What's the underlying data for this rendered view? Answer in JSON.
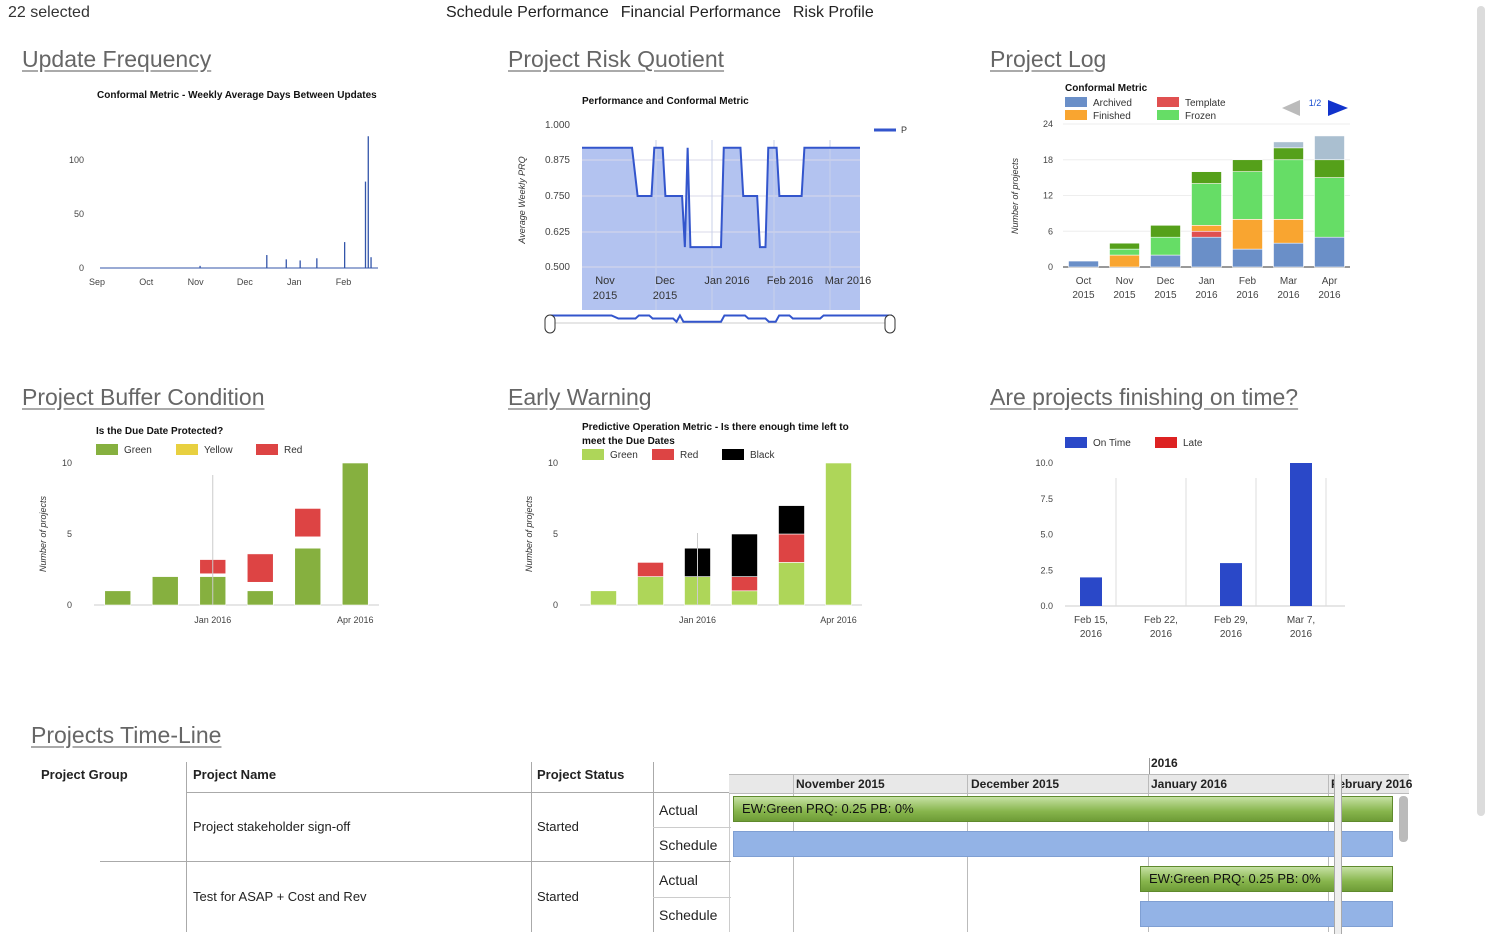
{
  "header": {
    "selected": "22 selected",
    "nav": [
      "Schedule Performance",
      "Financial Performance",
      "Risk Profile"
    ]
  },
  "panels": {
    "update_frequency": {
      "title": "Update Frequency"
    },
    "risk_quotient": {
      "title": "Project Risk Quotient"
    },
    "project_log": {
      "title": "Project Log"
    },
    "buffer_condition": {
      "title": "Project Buffer Condition"
    },
    "early_warning": {
      "title": "Early Warning"
    },
    "on_time": {
      "title": "Are projects finishing on time?"
    },
    "timeline": {
      "title": "Projects Time-Line"
    }
  },
  "chart_data": [
    {
      "id": "update_frequency",
      "type": "line",
      "title": "Conformal Metric - Weekly Average Days Between Updates",
      "xlabel": "",
      "ylabel": "",
      "x_ticks": [
        "Sep",
        "Oct",
        "Nov",
        "Dec",
        "Jan",
        "Feb"
      ],
      "y_ticks": [
        "100",
        "50",
        "0"
      ],
      "ylim": [
        0,
        125
      ],
      "spikes": [
        {
          "x": 0.36,
          "y": 2
        },
        {
          "x": 0.6,
          "y": 12
        },
        {
          "x": 0.67,
          "y": 8
        },
        {
          "x": 0.72,
          "y": 7
        },
        {
          "x": 0.78,
          "y": 9
        },
        {
          "x": 0.88,
          "y": 24
        },
        {
          "x": 0.955,
          "y": 80
        },
        {
          "x": 0.965,
          "y": 122
        },
        {
          "x": 0.975,
          "y": 10
        }
      ],
      "color": "#3355aa"
    },
    {
      "id": "risk_quotient",
      "type": "area",
      "title": "Performance and Conformal Metric",
      "ylabel": "Average Weekly PRQ",
      "y_ticks": [
        "1.000",
        "0.875",
        "0.750",
        "0.625",
        "0.500"
      ],
      "x_ticks": [
        [
          "Nov",
          "2015"
        ],
        [
          "Dec",
          "2015"
        ],
        [
          "Jan 2016"
        ],
        [
          "Feb 2016"
        ],
        [
          "Mar 2016"
        ]
      ],
      "ylim": [
        0.5,
        1.0
      ],
      "legend": "P",
      "points": [
        [
          0.0,
          0.92
        ],
        [
          0.18,
          0.92
        ],
        [
          0.2,
          0.75
        ],
        [
          0.25,
          0.75
        ],
        [
          0.26,
          0.92
        ],
        [
          0.29,
          0.92
        ],
        [
          0.3,
          0.75
        ],
        [
          0.36,
          0.75
        ],
        [
          0.37,
          0.57
        ],
        [
          0.38,
          0.92
        ],
        [
          0.39,
          0.57
        ],
        [
          0.5,
          0.57
        ],
        [
          0.51,
          0.92
        ],
        [
          0.57,
          0.92
        ],
        [
          0.58,
          0.75
        ],
        [
          0.63,
          0.75
        ],
        [
          0.64,
          0.57
        ],
        [
          0.66,
          0.57
        ],
        [
          0.67,
          0.92
        ],
        [
          0.7,
          0.92
        ],
        [
          0.71,
          0.75
        ],
        [
          0.79,
          0.75
        ],
        [
          0.8,
          0.92
        ],
        [
          1.0,
          0.92
        ]
      ],
      "color": "#3355cc",
      "fill": "#b3c3f0"
    },
    {
      "id": "project_log",
      "type": "bar",
      "title": "Conformal Metric",
      "ylabel": "Number of projects",
      "legend_items": [
        {
          "name": "Archived",
          "color": "#6a8fc8"
        },
        {
          "name": "Template",
          "color": "#e05050"
        },
        {
          "name": "Finished",
          "color": "#f9a530"
        },
        {
          "name": "Frozen",
          "color": "#66dd66"
        }
      ],
      "pager": "1/2",
      "y_ticks": [
        "24",
        "18",
        "12",
        "6",
        "0"
      ],
      "ylim": [
        0,
        24
      ],
      "categories": [
        [
          "Oct",
          "2015"
        ],
        [
          "Nov",
          "2015"
        ],
        [
          "Dec",
          "2015"
        ],
        [
          "Jan",
          "2016"
        ],
        [
          "Feb",
          "2016"
        ],
        [
          "Mar",
          "2016"
        ],
        [
          "Apr",
          "2016"
        ]
      ],
      "stack_colors": [
        "#6a8fc8",
        "#e05050",
        "#f9a530",
        "#66dd66",
        "#55a01a",
        "#aabfd0"
      ],
      "stacks": [
        [
          1,
          0,
          0,
          0,
          0,
          0
        ],
        [
          0,
          0,
          2,
          1,
          1,
          0
        ],
        [
          2,
          0,
          0,
          3,
          2,
          0
        ],
        [
          5,
          1,
          1,
          7,
          2,
          0
        ],
        [
          3,
          0,
          5,
          8,
          2,
          0
        ],
        [
          4,
          0,
          4,
          10,
          2,
          1
        ],
        [
          5,
          0,
          0,
          10,
          3,
          4
        ]
      ]
    },
    {
      "id": "buffer_condition",
      "type": "bar",
      "title": "Is the Due Date Protected?",
      "ylabel": "Number of projects",
      "legend_items": [
        {
          "name": "Green",
          "color": "#86b03f"
        },
        {
          "name": "Yellow",
          "color": "#e8d040"
        },
        {
          "name": "Red",
          "color": "#dd4444"
        }
      ],
      "y_ticks": [
        "10",
        "5",
        "0"
      ],
      "ylim": [
        0,
        10
      ],
      "x_labels": [
        "Jan 2016",
        "Apr 2016"
      ],
      "stacks": [
        [
          1,
          0
        ],
        [
          2,
          0
        ],
        [
          2,
          1
        ],
        [
          1,
          2
        ],
        [
          4,
          2
        ],
        [
          10,
          0
        ]
      ],
      "stack_colors": [
        "#86b03f",
        "#dd4444"
      ],
      "gaps": [
        0,
        0,
        0.2,
        0.6,
        0.8,
        0
      ]
    },
    {
      "id": "early_warning",
      "type": "bar",
      "title": "Predictive Operation Metric - Is there enough time left to meet the Due Dates",
      "ylabel": "Number of projects",
      "legend_items": [
        {
          "name": "Green",
          "color": "#aed659"
        },
        {
          "name": "Red",
          "color": "#dd4444"
        },
        {
          "name": "Black",
          "color": "#000000"
        }
      ],
      "y_ticks": [
        "10",
        "5",
        "0"
      ],
      "ylim": [
        0,
        10
      ],
      "x_labels": [
        "Jan 2016",
        "Apr 2016"
      ],
      "stacks": [
        [
          1,
          0,
          0
        ],
        [
          2,
          1,
          0
        ],
        [
          2,
          0,
          2
        ],
        [
          1,
          1,
          3
        ],
        [
          3,
          2,
          2
        ],
        [
          10,
          0,
          0
        ]
      ],
      "stack_colors": [
        "#aed659",
        "#dd4444",
        "#000000"
      ]
    },
    {
      "id": "on_time",
      "type": "bar",
      "title": "",
      "legend_items": [
        {
          "name": "On Time",
          "color": "#2a48c8"
        },
        {
          "name": "Late",
          "color": "#dd2222"
        }
      ],
      "y_ticks": [
        "10.0",
        "7.5",
        "5.0",
        "2.5",
        "0.0"
      ],
      "ylim": [
        0,
        10
      ],
      "categories": [
        [
          "Feb 15,",
          "2016"
        ],
        [
          "Feb 22,",
          "2016"
        ],
        [
          "Feb 29,",
          "2016"
        ],
        [
          "Mar 7,",
          "2016"
        ]
      ],
      "values": [
        2,
        0,
        3,
        10
      ]
    }
  ],
  "timeline": {
    "headers": {
      "group": "Project Group",
      "name": "Project Name",
      "status": "Project Status"
    },
    "year_label": "2016",
    "months": [
      "November 2015",
      "December 2015",
      "January 2016",
      "February 2016"
    ],
    "rows": [
      {
        "name": "Project stakeholder sign-off",
        "status": "Started",
        "actual": "Actual",
        "schedule": "Schedule",
        "bar_label": "EW:Green PRQ: 0.25 PB: 0%"
      },
      {
        "name": "Test for ASAP + Cost and Rev",
        "status": "Started",
        "actual": "Actual",
        "schedule": "Schedule",
        "bar_label": "EW:Green PRQ: 0.25 PB: 0%"
      }
    ]
  }
}
